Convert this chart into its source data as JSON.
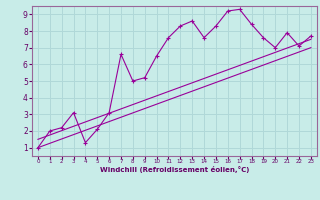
{
  "xlabel": "Windchill (Refroidissement éolien,°C)",
  "background_color": "#c8ece8",
  "line_color": "#990099",
  "grid_color": "#b0d8d8",
  "xlim": [
    -0.5,
    23.5
  ],
  "ylim": [
    0.5,
    9.5
  ],
  "xticks": [
    0,
    1,
    2,
    3,
    4,
    5,
    6,
    7,
    8,
    9,
    10,
    11,
    12,
    13,
    14,
    15,
    16,
    17,
    18,
    19,
    20,
    21,
    22,
    23
  ],
  "yticks": [
    1,
    2,
    3,
    4,
    5,
    6,
    7,
    8,
    9
  ],
  "line1_x": [
    0,
    1,
    2,
    3,
    4,
    5,
    6,
    7,
    8,
    9,
    10,
    11,
    12,
    13,
    14,
    15,
    16,
    17,
    18,
    19,
    20,
    21,
    22,
    23
  ],
  "line1_y": [
    1.0,
    2.0,
    2.2,
    3.1,
    1.3,
    2.1,
    3.1,
    6.6,
    5.0,
    5.2,
    6.5,
    7.6,
    8.3,
    8.6,
    7.6,
    8.3,
    9.2,
    9.3,
    8.4,
    7.6,
    7.0,
    7.9,
    7.1,
    7.7
  ],
  "line2_x": [
    0,
    23
  ],
  "line2_y": [
    1.0,
    7.0
  ],
  "line3_x": [
    0,
    23
  ],
  "line3_y": [
    1.5,
    7.5
  ]
}
